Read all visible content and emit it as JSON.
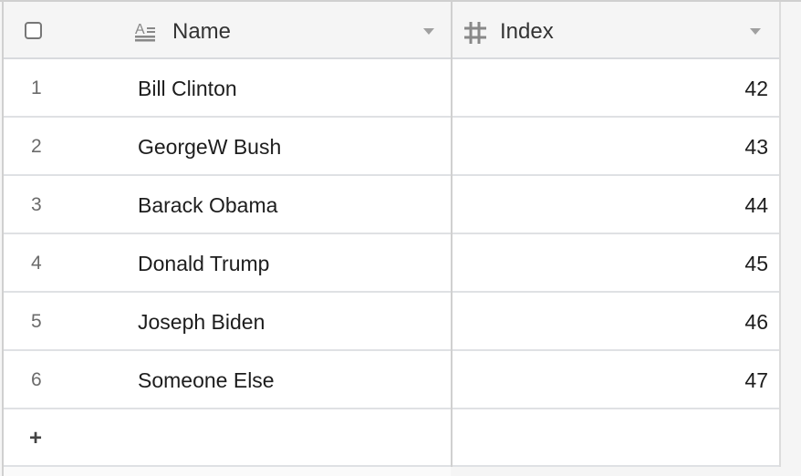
{
  "columns": [
    {
      "label": "Name",
      "icon": "text-field-icon"
    },
    {
      "label": "Index",
      "icon": "number-field-icon"
    }
  ],
  "rows": [
    {
      "num": "1",
      "name": "Bill Clinton",
      "index": "42"
    },
    {
      "num": "2",
      "name": "GeorgeW Bush",
      "index": "43"
    },
    {
      "num": "3",
      "name": "Barack Obama",
      "index": "44"
    },
    {
      "num": "4",
      "name": "Donald Trump",
      "index": "45"
    },
    {
      "num": "5",
      "name": "Joseph Biden",
      "index": "46"
    },
    {
      "num": "6",
      "name": "Someone Else",
      "index": "47"
    }
  ],
  "add_row": {
    "label": "+",
    "icon": "plus-icon"
  }
}
